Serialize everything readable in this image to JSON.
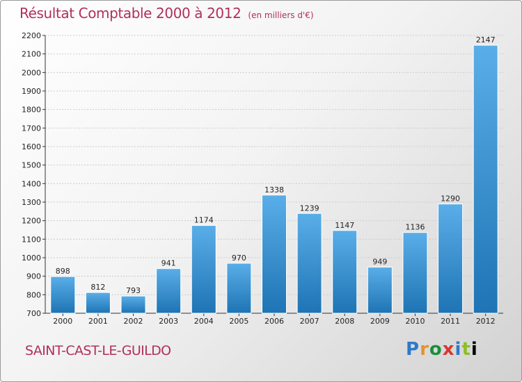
{
  "header": {
    "title": "Résultat Comptable 2000 à 2012",
    "unit": "(en milliers d'€)"
  },
  "commune": "SAINT-CAST-LE-GUILDO",
  "logo": {
    "letters": [
      "P",
      "r",
      "o",
      "x",
      "i",
      "t",
      "i"
    ]
  },
  "colors": {
    "title": "#b0305a",
    "bar_light": "#5aaee8",
    "bar_dark": "#1e74b4",
    "grid": "#cccccc"
  },
  "chart_data": {
    "type": "bar",
    "title": "Résultat Comptable 2000 à 2012",
    "xlabel": "",
    "ylabel": "(en milliers d'€)",
    "categories": [
      "2000",
      "2001",
      "2002",
      "2003",
      "2004",
      "2005",
      "2006",
      "2007",
      "2008",
      "2009",
      "2010",
      "2011",
      "2012"
    ],
    "values": [
      898,
      812,
      793,
      941,
      1174,
      970,
      1338,
      1239,
      1147,
      949,
      1136,
      1290,
      2147
    ],
    "ylim": [
      700,
      2200
    ],
    "yticks": [
      700,
      800,
      900,
      1000,
      1100,
      1200,
      1300,
      1400,
      1500,
      1600,
      1700,
      1800,
      1900,
      2000,
      2100,
      2200
    ],
    "grid": true,
    "data_labels": true
  }
}
